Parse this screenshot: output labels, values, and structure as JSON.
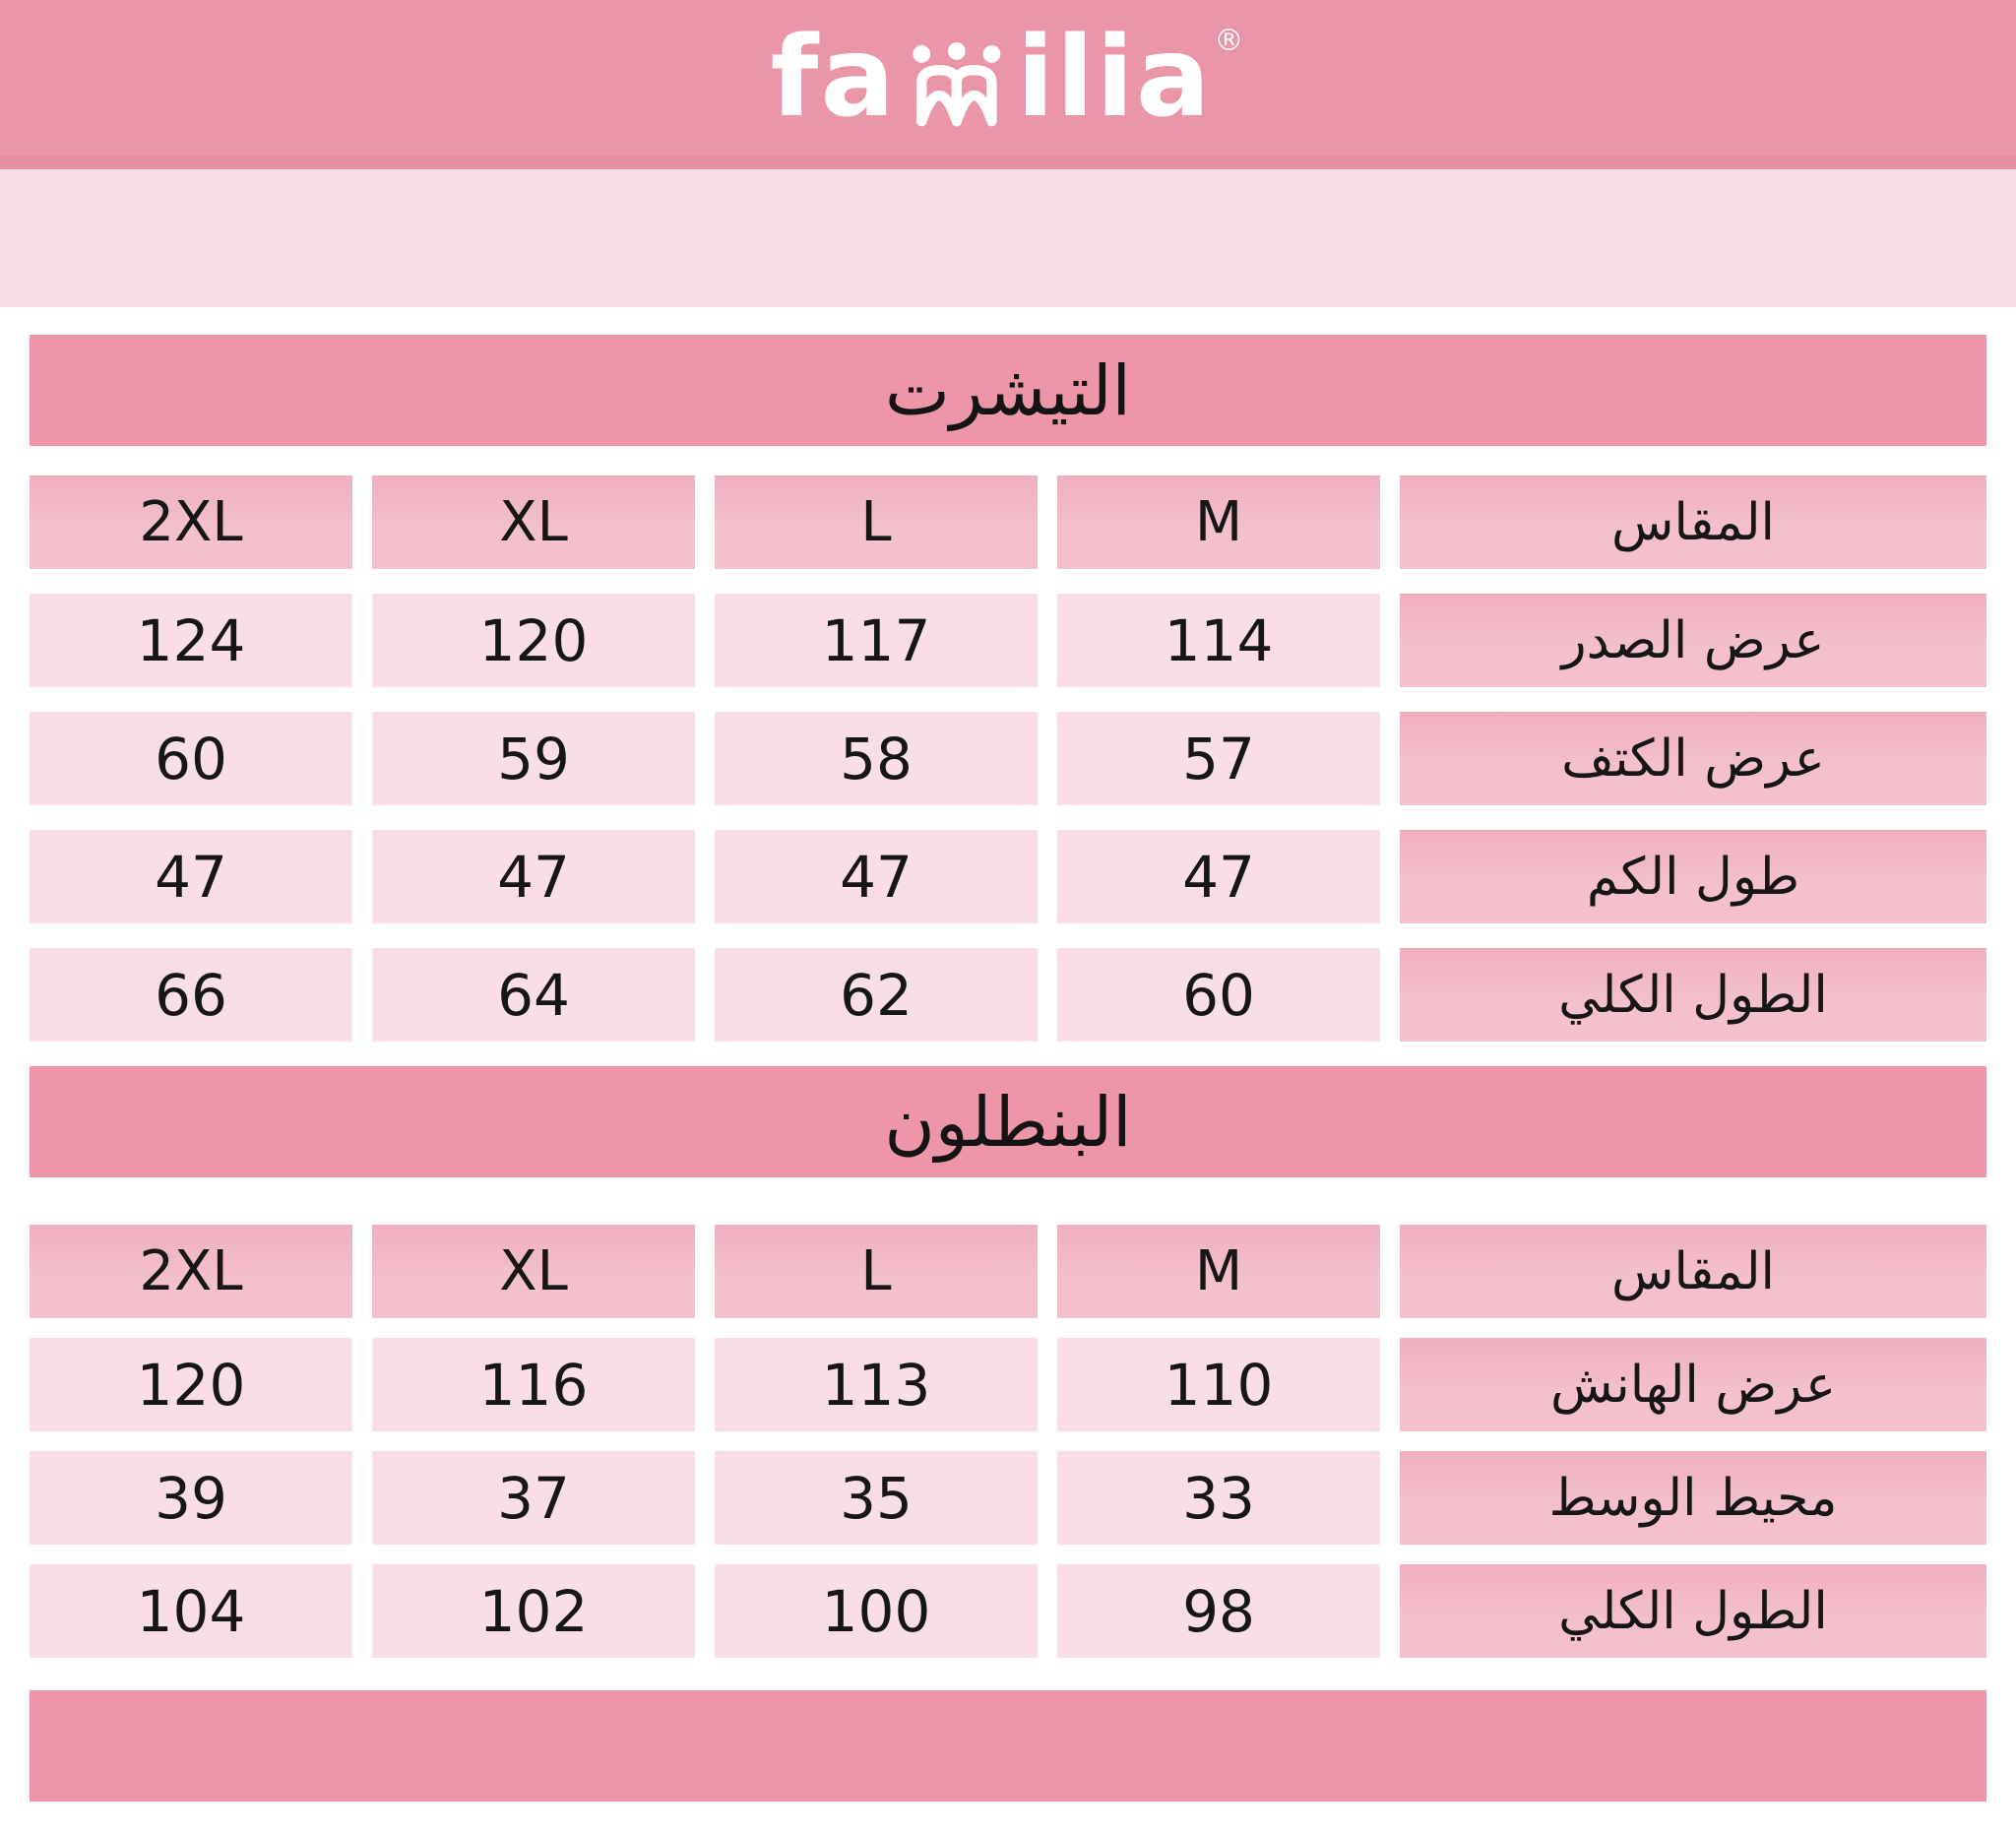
{
  "brand": {
    "logo_text_left": "fa",
    "logo_text_right": "ilia",
    "logo_full": "familia",
    "registered_mark": "®",
    "people_icon": "familia-people-icon"
  },
  "colors": {
    "brand_pink": "#EC96A8",
    "topbar_pink": "#EA96A8",
    "topbar_edge_pink": "#E78FA2",
    "band_light_pink": "#F8DDE5",
    "header_cell_pink": "#F3BCCA",
    "data_cell_pink": "#F9DEE6",
    "text_black": "#141414",
    "logo_white": "#FFFFFF"
  },
  "chart_data": [
    {
      "type": "table",
      "title": "التيشرت",
      "columns_rtl": [
        "المقاس",
        "M",
        "L",
        "XL",
        "2XL"
      ],
      "rows": [
        [
          "عرض الصدر",
          "114",
          "117",
          "120",
          "124"
        ],
        [
          "عرض الكتف",
          "57",
          "58",
          "59",
          "60"
        ],
        [
          "طول الكم",
          "47",
          "47",
          "47",
          "47"
        ],
        [
          "الطول الكلي",
          "60",
          "62",
          "64",
          "66"
        ]
      ]
    },
    {
      "type": "table",
      "title": "البنطلون",
      "columns_rtl": [
        "المقاس",
        "M",
        "L",
        "XL",
        "2XL"
      ],
      "rows": [
        [
          "عرض الهانش",
          "110",
          "113",
          "116",
          "120"
        ],
        [
          "محيط الوسط",
          "33",
          "35",
          "37",
          "39"
        ],
        [
          "الطول الكلي",
          "98",
          "100",
          "102",
          "104"
        ]
      ]
    }
  ]
}
